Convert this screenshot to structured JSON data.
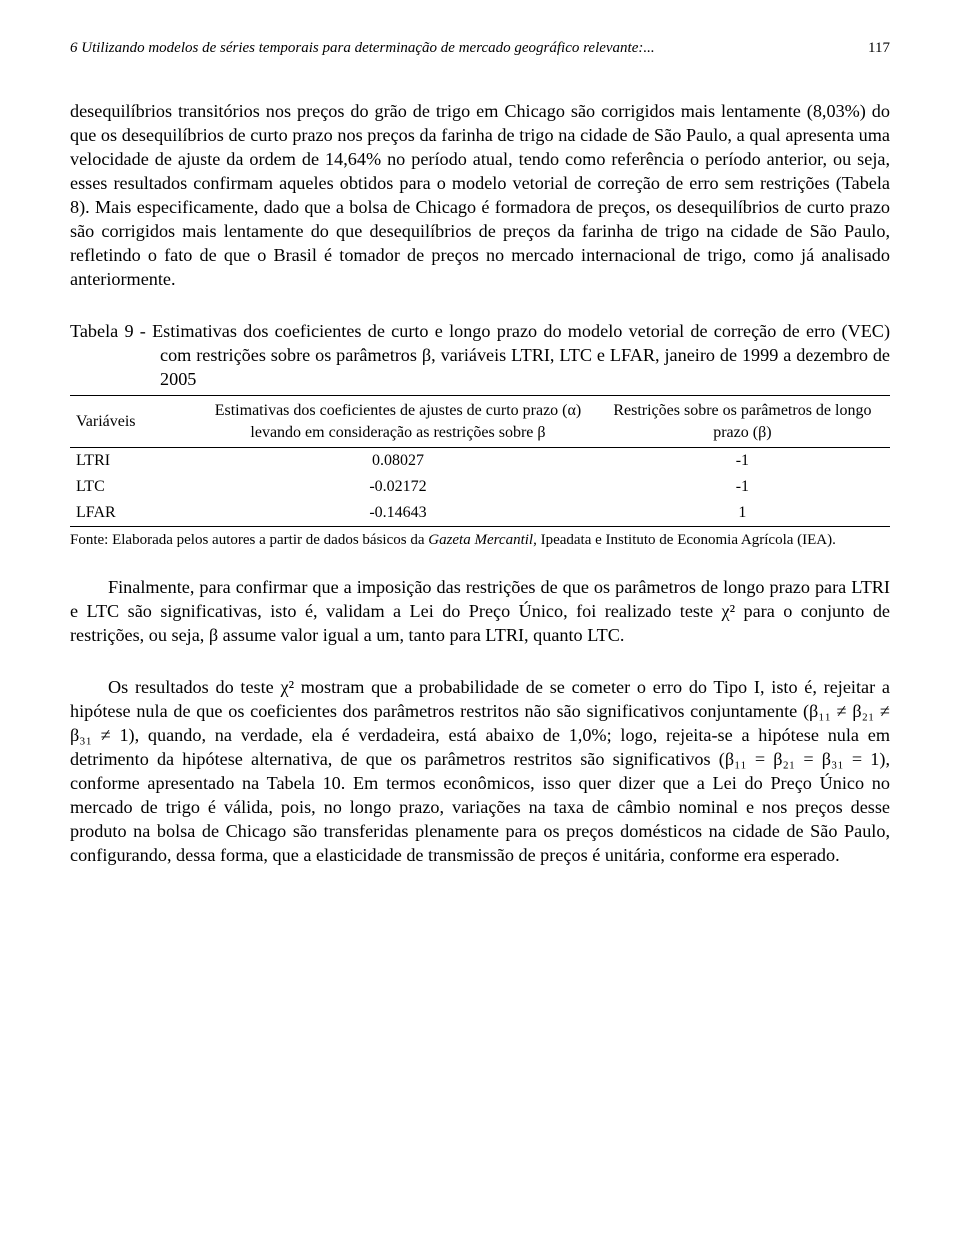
{
  "header": {
    "running_title": "6 Utilizando modelos de séries temporais para determinação de mercado geográfico relevante:...",
    "page_number": "117"
  },
  "paragraphs": {
    "p1": "desequilíbrios transitórios nos preços do grão de trigo em Chicago são corrigidos mais lentamente (8,03%) do que os desequilíbrios de curto prazo nos preços da farinha de trigo na cidade de São Paulo, a qual apresenta uma velocidade de ajuste da ordem de 14,64% no período atual, tendo como referência o período anterior, ou seja, esses resultados confirmam aqueles obtidos para o modelo vetorial de correção de erro sem restrições (Tabela 8). Mais especificamente, dado que a bolsa de Chicago é formadora de preços, os desequilíbrios de curto prazo são corrigidos mais lentamente do que desequilíbrios de preços da farinha de trigo na cidade de São Paulo, refletindo o fato de que o Brasil é tomador de preços no mercado internacional de trigo, como já analisado anteriormente.",
    "p2": "Finalmente, para confirmar que a imposição das restrições de que os parâmetros de longo prazo para LTRI e LTC são significativas, isto é, validam a Lei do Preço Único, foi realizado teste χ² para o conjunto de restrições, ou seja, β assume valor igual a um, tanto para LTRI, quanto LTC.",
    "p3": "Os resultados do teste χ² mostram que a probabilidade de se cometer o erro do Tipo I, isto é, rejeitar a hipótese nula de que os coeficientes dos parâmetros restritos não são significativos conjuntamente (β₁₁ ≠ β₂₁ ≠ β₃₁ ≠ 1), quando, na verdade, ela é verdadeira, está abaixo de 1,0%; logo, rejeita-se a hipótese nula em detrimento da hipótese alternativa, de que os parâmetros restritos são significativos (β₁₁ = β₂₁ = β₃₁ = 1), conforme apresentado na Tabela 10. Em termos econômicos, isso quer dizer que a Lei do Preço Único no mercado de trigo é válida, pois, no longo prazo, variações na taxa de câmbio nominal e nos preços desse produto na bolsa de Chicago são transferidas plenamente para os preços domésticos na cidade de São Paulo, configurando, dessa forma, que a elasticidade de transmissão de preços é unitária, conforme era esperado."
  },
  "table9": {
    "caption": "Tabela 9 - Estimativas dos coeficientes de curto e longo prazo do modelo vetorial de correção de erro (VEC) com restrições sobre os parâmetros β, variáveis LTRI, LTC e LFAR, janeiro de 1999 a dezembro de 2005",
    "columns": {
      "c0": "Variáveis",
      "c1": "Estimativas dos coeficientes de ajustes de curto prazo (α) levando em consideração as restrições sobre β",
      "c2": "Restrições sobre os parâmetros de longo prazo (β)"
    },
    "rows": [
      {
        "var": "LTRI",
        "alpha": "0.08027",
        "beta": "-1"
      },
      {
        "var": "LTC",
        "alpha": "-0.02172",
        "beta": "-1"
      },
      {
        "var": "LFAR",
        "alpha": "-0.14643",
        "beta": "1"
      }
    ],
    "source": "Fonte: Elaborada pelos autores a partir de dados básicos da Gazeta Mercantil, Ipeadata e Instituto de Economia Agrícola (IEA).",
    "source_italic_1": "Gazeta Mercantil"
  }
}
